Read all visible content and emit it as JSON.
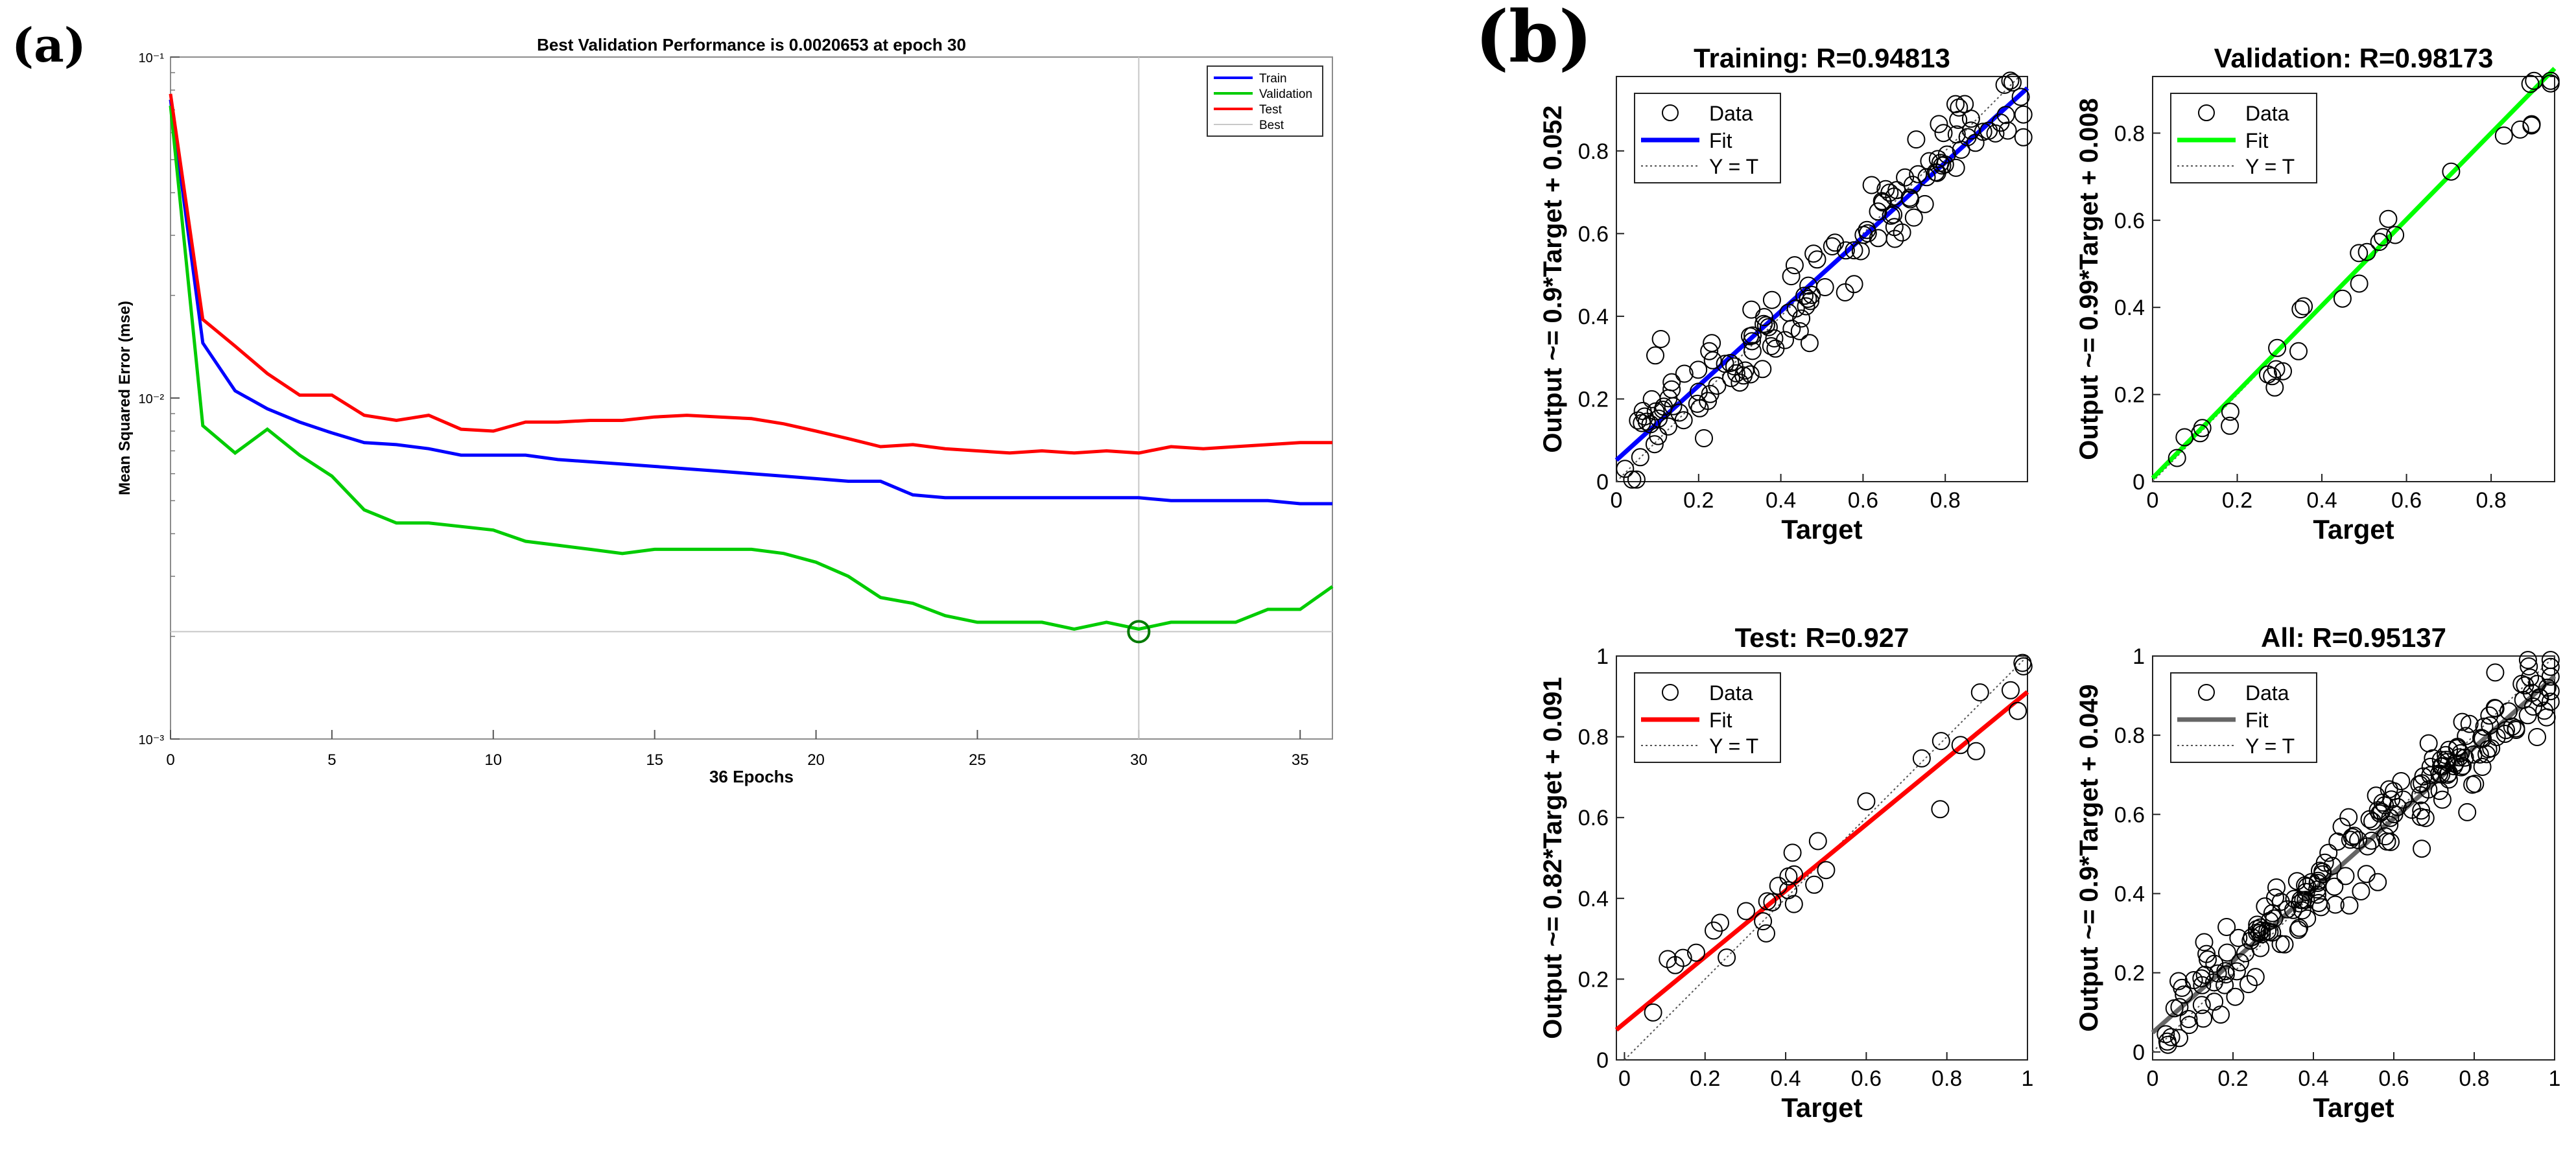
{
  "panel_labels": {
    "a": "(a)",
    "b": "(b)"
  },
  "chart_data": [
    {
      "type": "line",
      "title": "Best Validation Performance is 0.0020653 at epoch 30",
      "xlabel": "36 Epochs",
      "ylabel": "Mean Squared Error  (mse)",
      "xlim": [
        0,
        36
      ],
      "ylim_log10": [
        -3,
        -1
      ],
      "yscale": "log",
      "xticks": [
        0,
        5,
        10,
        15,
        20,
        25,
        30,
        35
      ],
      "ytick_labels": [
        "10⁻¹",
        "10⁻²",
        "10⁻³"
      ],
      "ytick_values": [
        0.1,
        0.01,
        0.001
      ],
      "legend_position": "top-right",
      "best": {
        "epoch": 30,
        "value": 0.0020653,
        "label": "Best"
      },
      "series": [
        {
          "name": "Train",
          "color": "#0000ff",
          "x": [
            0,
            1,
            2,
            3,
            4,
            5,
            6,
            7,
            8,
            9,
            10,
            11,
            12,
            13,
            14,
            15,
            16,
            17,
            18,
            19,
            20,
            21,
            22,
            23,
            24,
            25,
            26,
            27,
            28,
            29,
            30,
            31,
            32,
            33,
            34,
            35,
            36
          ],
          "values": [
            0.075,
            0.0145,
            0.0105,
            0.0093,
            0.0085,
            0.0079,
            0.0074,
            0.0073,
            0.0071,
            0.0068,
            0.0068,
            0.0068,
            0.0066,
            0.0065,
            0.0064,
            0.0063,
            0.0062,
            0.0061,
            0.006,
            0.0059,
            0.0058,
            0.0057,
            0.0057,
            0.0052,
            0.0051,
            0.0051,
            0.0051,
            0.0051,
            0.0051,
            0.0051,
            0.0051,
            0.005,
            0.005,
            0.005,
            0.005,
            0.0049,
            0.0049
          ]
        },
        {
          "name": "Validation",
          "color": "#00cc00",
          "x": [
            0,
            1,
            2,
            3,
            4,
            5,
            6,
            7,
            8,
            9,
            10,
            11,
            12,
            13,
            14,
            15,
            16,
            17,
            18,
            19,
            20,
            21,
            22,
            23,
            24,
            25,
            26,
            27,
            28,
            29,
            30,
            31,
            32,
            33,
            34,
            35,
            36
          ],
          "values": [
            0.072,
            0.0083,
            0.0069,
            0.0081,
            0.0068,
            0.0059,
            0.0047,
            0.0043,
            0.0043,
            0.0042,
            0.0041,
            0.0038,
            0.0037,
            0.0036,
            0.0035,
            0.0036,
            0.0036,
            0.0036,
            0.0036,
            0.0035,
            0.0033,
            0.003,
            0.0026,
            0.0025,
            0.0023,
            0.0022,
            0.0022,
            0.0022,
            0.0021,
            0.0022,
            0.0021,
            0.0022,
            0.0022,
            0.0022,
            0.0024,
            0.0024,
            0.0028
          ]
        },
        {
          "name": "Test",
          "color": "#ff0000",
          "x": [
            0,
            1,
            2,
            3,
            4,
            5,
            6,
            7,
            8,
            9,
            10,
            11,
            12,
            13,
            14,
            15,
            16,
            17,
            18,
            19,
            20,
            21,
            22,
            23,
            24,
            25,
            26,
            27,
            28,
            29,
            30,
            31,
            32,
            33,
            34,
            35,
            36
          ],
          "values": [
            0.078,
            0.017,
            0.0142,
            0.0118,
            0.0102,
            0.0102,
            0.0089,
            0.0086,
            0.0089,
            0.0081,
            0.008,
            0.0085,
            0.0085,
            0.0086,
            0.0086,
            0.0088,
            0.0089,
            0.0088,
            0.0087,
            0.0084,
            0.008,
            0.0076,
            0.0072,
            0.0073,
            0.0071,
            0.007,
            0.0069,
            0.007,
            0.0069,
            0.007,
            0.0069,
            0.0072,
            0.0071,
            0.0072,
            0.0073,
            0.0074,
            0.0074
          ]
        }
      ]
    },
    {
      "type": "scatter",
      "title": "Training: R=0.94813",
      "xlabel": "Target",
      "ylabel": "Output ~= 0.9*Target + 0.052",
      "xlim": [
        0,
        1
      ],
      "ylim": [
        0,
        0.98
      ],
      "xticks": [
        0,
        0.2,
        0.4,
        0.6,
        0.8
      ],
      "yticks": [
        0,
        0.2,
        0.4,
        0.6,
        0.8
      ],
      "fit": {
        "slope": 0.9,
        "intercept": 0.052,
        "color": "#0000ff"
      },
      "legend": [
        "Data",
        "Fit",
        "Y = T"
      ],
      "seed": 11,
      "n_points": 145,
      "noise": 0.055
    },
    {
      "type": "scatter",
      "title": "Validation: R=0.98173",
      "xlabel": "Target",
      "ylabel": "Output ~= 0.99*Target + 0.008",
      "xlim": [
        0,
        0.95
      ],
      "ylim": [
        0,
        0.93
      ],
      "xticks": [
        0,
        0.2,
        0.4,
        0.6,
        0.8
      ],
      "yticks": [
        0,
        0.2,
        0.4,
        0.6,
        0.8
      ],
      "fit": {
        "slope": 0.99,
        "intercept": 0.008,
        "color": "#00ff00"
      },
      "legend": [
        "Data",
        "Fit",
        "Y = T"
      ],
      "seed": 23,
      "n_points": 32,
      "noise": 0.035
    },
    {
      "type": "scatter",
      "title": "Test: R=0.927",
      "xlabel": "Target",
      "ylabel": "Output ~= 0.82*Target + 0.091",
      "xlim": [
        -0.02,
        1
      ],
      "ylim": [
        0,
        1
      ],
      "xticks": [
        0,
        0.2,
        0.4,
        0.6,
        0.8,
        1
      ],
      "yticks": [
        0,
        0.2,
        0.4,
        0.6,
        0.8,
        1
      ],
      "fit": {
        "slope": 0.82,
        "intercept": 0.091,
        "color": "#ff0000"
      },
      "legend": [
        "Data",
        "Fit",
        "Y = T"
      ],
      "seed": 37,
      "n_points": 33,
      "noise": 0.055
    },
    {
      "type": "scatter",
      "title": "All: R=0.95137",
      "xlabel": "Target",
      "ylabel": "Output ~= 0.9*Target + 0.049",
      "xlim": [
        0,
        1
      ],
      "ylim": [
        -0.02,
        1
      ],
      "xticks": [
        0,
        0.2,
        0.4,
        0.6,
        0.8,
        1
      ],
      "yticks": [
        0,
        0.2,
        0.4,
        0.6,
        0.8,
        1
      ],
      "fit": {
        "slope": 0.9,
        "intercept": 0.049,
        "color": "#666666"
      },
      "legend": [
        "Data",
        "Fit",
        "Y = T"
      ],
      "seed": 53,
      "n_points": 210,
      "noise": 0.052
    }
  ]
}
